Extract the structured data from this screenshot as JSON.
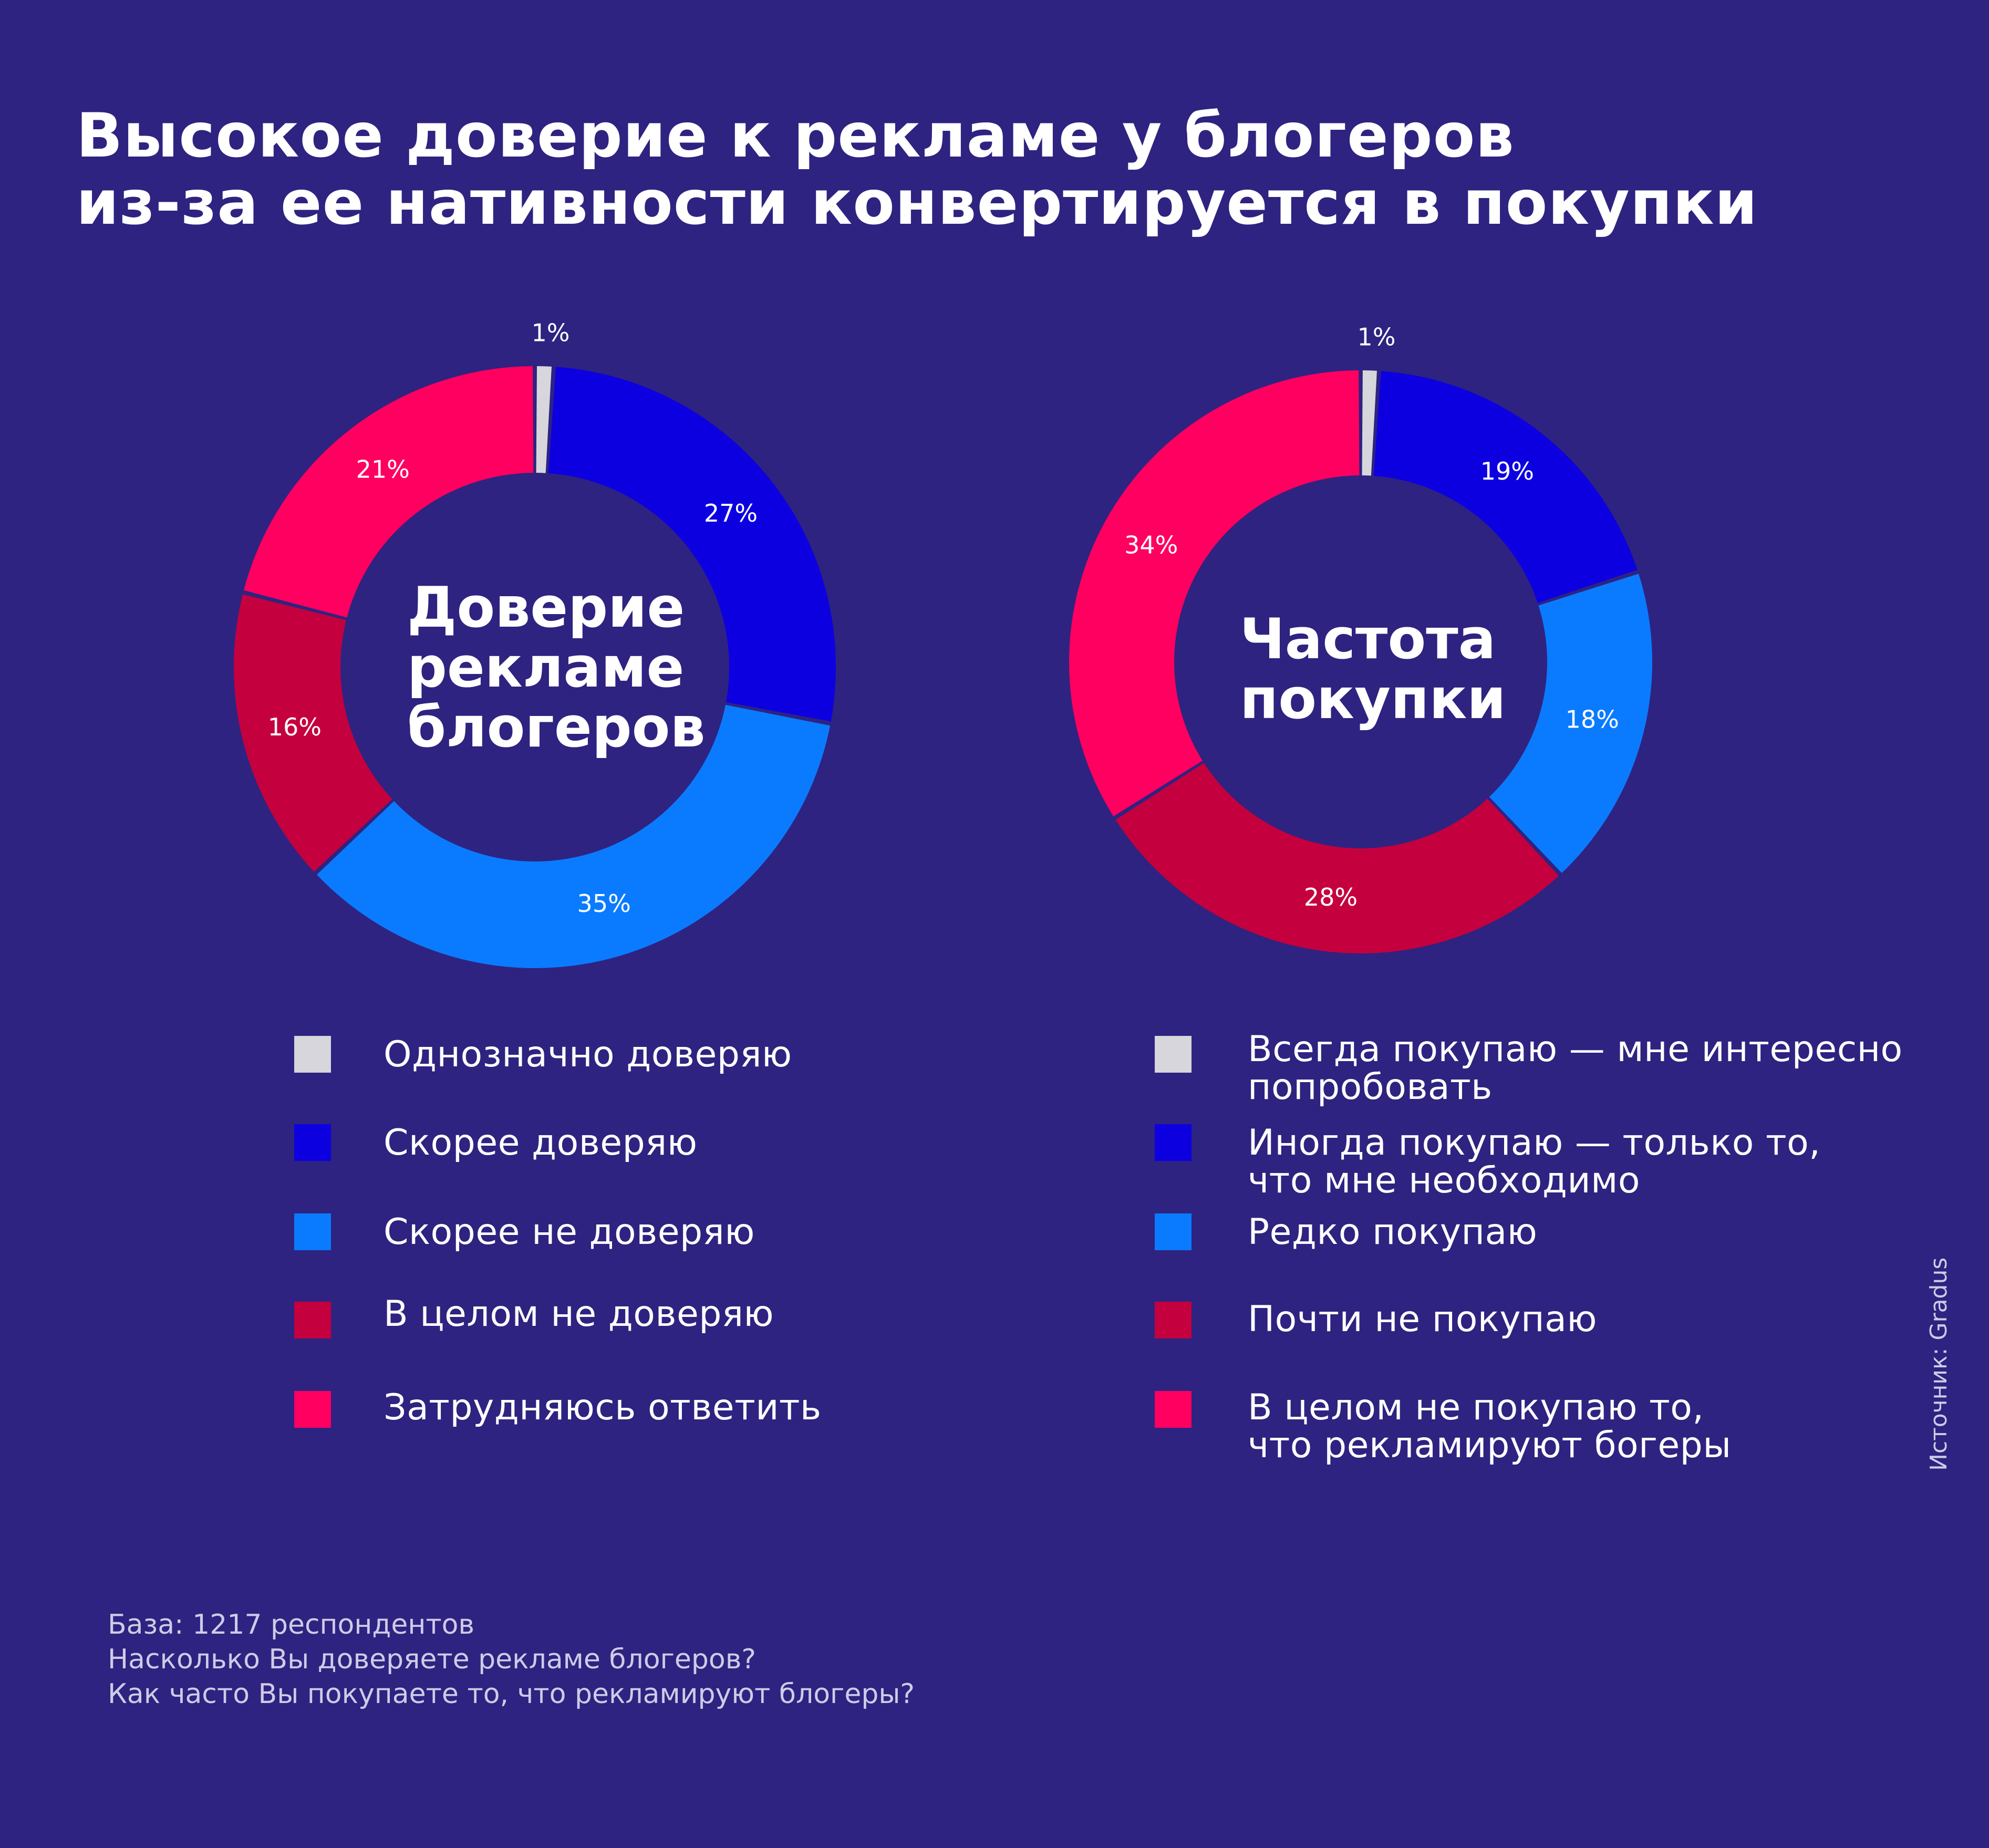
{
  "title": {
    "line1": "Высокое доверие к рекламе у блогеров",
    "line2": "из-за ее нативности конвертируется в покупки"
  },
  "chart_data": [
    {
      "type": "pie",
      "center_label": [
        "Доверие",
        "рекламе",
        "блогеров"
      ],
      "categories": [
        "Однозначно доверяю",
        "Скорее доверяю",
        "Скорее не доверяю",
        "В целом не доверяю",
        "Затрудняюсь ответить"
      ],
      "values": [
        1,
        27,
        35,
        16,
        21
      ],
      "labels": [
        "1%",
        "27%",
        "35%",
        "16%",
        "21%"
      ],
      "colors": [
        "#d6d6dc",
        "#0d00e0",
        "#0a7bff",
        "#c5003e",
        "#ff0060"
      ]
    },
    {
      "type": "pie",
      "center_label": [
        "Частота",
        "покупки"
      ],
      "categories": [
        "Всегда покупаю — мне интересно попробовать",
        "Иногда покупаю — только то, что мне необходимо",
        "Редко покупаю",
        "Почти не покупаю",
        "В целом не покупаю то, что рекламируют богеры"
      ],
      "values": [
        1,
        19,
        18,
        28,
        34
      ],
      "labels": [
        "1%",
        "19%",
        "18%",
        "28%",
        "34%"
      ],
      "colors": [
        "#d6d6dc",
        "#0d00e0",
        "#0a7bff",
        "#c5003e",
        "#ff0060"
      ]
    }
  ],
  "legend_left": [
    {
      "lines": [
        "Однозначно доверяю"
      ]
    },
    {
      "lines": [
        "Скорее доверяю"
      ]
    },
    {
      "lines": [
        "Скорее не доверяю"
      ]
    },
    {
      "lines": [
        "В целом не доверяю"
      ]
    },
    {
      "lines": [
        "Затрудняюсь ответить"
      ]
    }
  ],
  "legend_right": [
    {
      "lines": [
        "Всегда покупаю — мне интересно",
        "попробовать"
      ]
    },
    {
      "lines": [
        "Иногда покупаю — только то,",
        "что мне необходимо"
      ]
    },
    {
      "lines": [
        "Редко покупаю"
      ]
    },
    {
      "lines": [
        "Почти не покупаю"
      ]
    },
    {
      "lines": [
        "В целом не покупаю то,",
        "что рекламируют богеры"
      ]
    }
  ],
  "footnote": {
    "line1": "База: 1217 респондентов",
    "line2": "Насколько Вы доверяете рекламе блогеров?",
    "line3": "Как часто Вы покупаете то, что рекламируют блогеры?"
  },
  "source": "Источник: Gradus",
  "colors": {
    "background": "#2e2380",
    "text": "#ffffff",
    "muted_text": "#cfcbe8"
  }
}
